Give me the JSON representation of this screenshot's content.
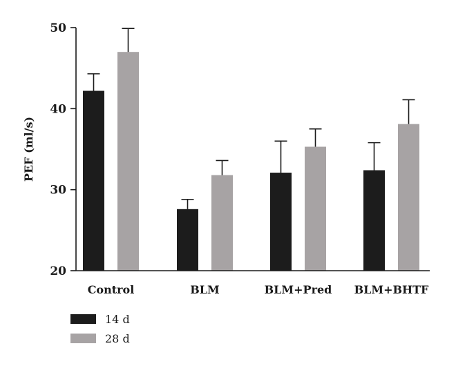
{
  "chart_data": {
    "type": "bar",
    "title": "",
    "xlabel": "",
    "ylabel": "PEF (ml/s)",
    "ylim": [
      20,
      50
    ],
    "yticks": [
      20,
      30,
      40,
      50
    ],
    "categories": [
      "Control",
      "BLM",
      "BLM+Pred",
      "BLM+BHTF"
    ],
    "series": [
      {
        "name": "14 d",
        "color": "#1c1c1c",
        "values": [
          42.2,
          27.6,
          32.1,
          32.4
        ],
        "errors": [
          2.1,
          1.2,
          3.9,
          3.4
        ]
      },
      {
        "name": "28 d",
        "color": "#a7a3a4",
        "values": [
          47.0,
          31.8,
          35.3,
          38.1
        ],
        "errors": [
          2.9,
          1.8,
          2.2,
          3.0
        ]
      }
    ],
    "legend_position": "bottom-left",
    "grid": false
  }
}
